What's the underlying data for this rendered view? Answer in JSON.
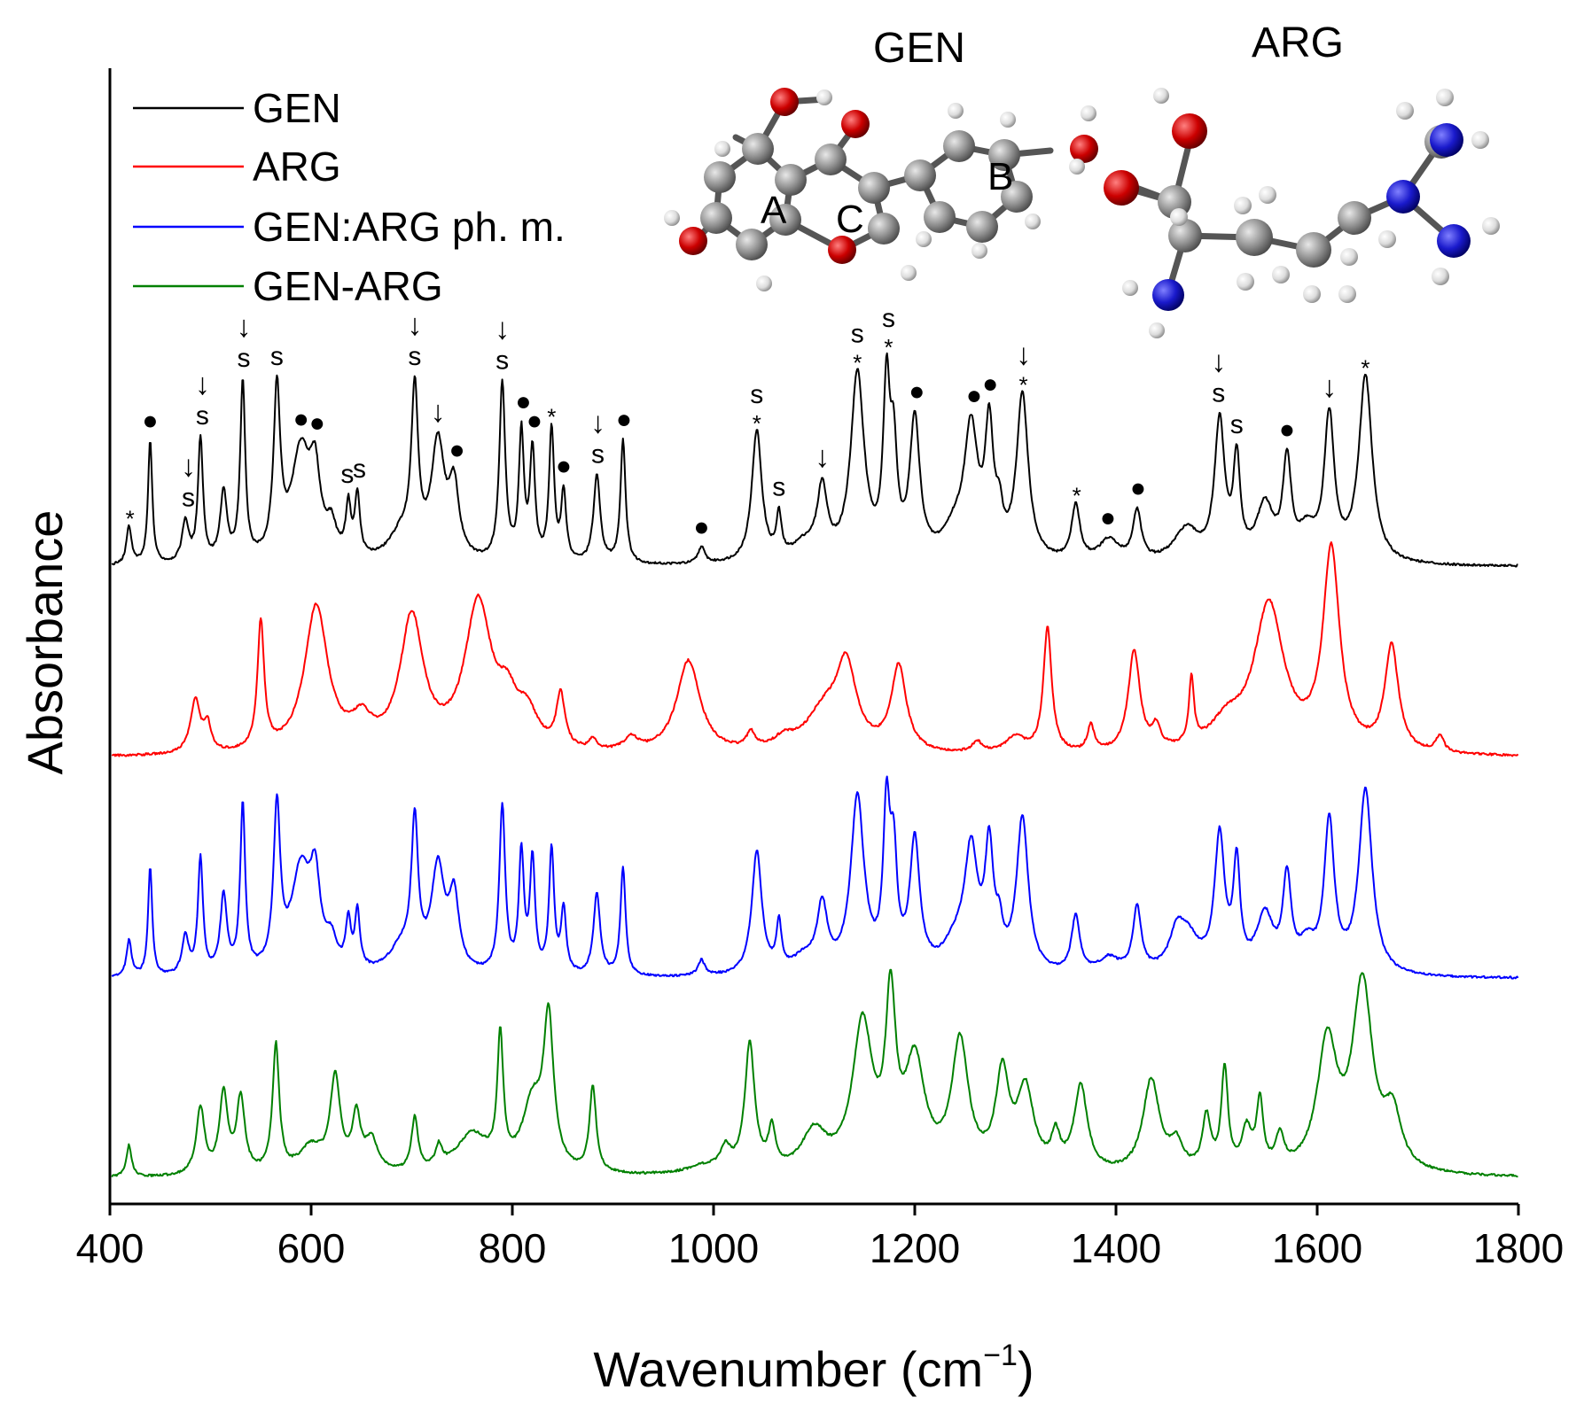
{
  "chart_data": {
    "type": "line",
    "title": "",
    "xlabel": "Wavenumber (cm",
    "xlabel_sup": "−1",
    "xlabel_close": ")",
    "ylabel": "Absorbance",
    "xlim": [
      400,
      1800
    ],
    "x_ticks": [
      "400",
      "600",
      "800",
      "1000",
      "1200",
      "1400",
      "1600",
      "1800"
    ],
    "y_ticks_shown": false,
    "legend_position": "top-left",
    "offsets": [
      0.0,
      -0.95,
      -2.1,
      -3.15
    ],
    "series": [
      {
        "name": "GEN",
        "color": "#000000",
        "baseline": 0.0,
        "peaks": [
          [
            419,
            0.14,
            3
          ],
          [
            440,
            0.45,
            2.5
          ],
          [
            475,
            0.15,
            4
          ],
          [
            490,
            0.45,
            3
          ],
          [
            513,
            0.25,
            4
          ],
          [
            532,
            0.65,
            3
          ],
          [
            566,
            0.6,
            4
          ],
          [
            590,
            0.4,
            12
          ],
          [
            604,
            0.25,
            6
          ],
          [
            620,
            0.1,
            6
          ],
          [
            637,
            0.18,
            3
          ],
          [
            646,
            0.22,
            3
          ],
          [
            703,
            0.58,
            4
          ],
          [
            690,
            0.1,
            15
          ],
          [
            726,
            0.42,
            8
          ],
          [
            742,
            0.25,
            6
          ],
          [
            790,
            0.65,
            3.5
          ],
          [
            809,
            0.46,
            3
          ],
          [
            820,
            0.4,
            3
          ],
          [
            839,
            0.48,
            3
          ],
          [
            851,
            0.25,
            3
          ],
          [
            884,
            0.32,
            4
          ],
          [
            910,
            0.45,
            3
          ],
          [
            988,
            0.06,
            4
          ],
          [
            1043,
            0.48,
            6
          ],
          [
            1065,
            0.15,
            3
          ],
          [
            1108,
            0.25,
            6
          ],
          [
            1090,
            0.06,
            15
          ],
          [
            1143,
            0.68,
            8
          ],
          [
            1172,
            0.6,
            4
          ],
          [
            1179,
            0.35,
            4
          ],
          [
            1200,
            0.5,
            6
          ],
          [
            1240,
            0.1,
            15
          ],
          [
            1256,
            0.45,
            8
          ],
          [
            1274,
            0.45,
            5
          ],
          [
            1284,
            0.12,
            4
          ],
          [
            1307,
            0.6,
            7
          ],
          [
            1360,
            0.2,
            5
          ],
          [
            1393,
            0.08,
            12
          ],
          [
            1421,
            0.18,
            5
          ],
          [
            1470,
            0.12,
            15
          ],
          [
            1503,
            0.5,
            6
          ],
          [
            1520,
            0.35,
            4
          ],
          [
            1548,
            0.2,
            10
          ],
          [
            1570,
            0.35,
            5
          ],
          [
            1612,
            0.52,
            6
          ],
          [
            1648,
            0.68,
            8
          ],
          [
            1590,
            0.1,
            10
          ]
        ]
      },
      {
        "name": "ARG",
        "color": "#ff0000",
        "baseline": 0.0,
        "peaks": [
          [
            485,
            0.2,
            6
          ],
          [
            497,
            0.1,
            4
          ],
          [
            550,
            0.48,
            4
          ],
          [
            605,
            0.55,
            14
          ],
          [
            650,
            0.1,
            12
          ],
          [
            700,
            0.5,
            14
          ],
          [
            766,
            0.55,
            16
          ],
          [
            795,
            0.15,
            12
          ],
          [
            815,
            0.12,
            12
          ],
          [
            848,
            0.2,
            5
          ],
          [
            880,
            0.04,
            4
          ],
          [
            918,
            0.05,
            8
          ],
          [
            975,
            0.35,
            14
          ],
          [
            1037,
            0.06,
            5
          ],
          [
            1070,
            0.04,
            12
          ],
          [
            1110,
            0.15,
            22
          ],
          [
            1132,
            0.3,
            12
          ],
          [
            1184,
            0.32,
            9
          ],
          [
            1262,
            0.04,
            6
          ],
          [
            1300,
            0.06,
            12
          ],
          [
            1332,
            0.47,
            5
          ],
          [
            1375,
            0.1,
            4
          ],
          [
            1418,
            0.38,
            7
          ],
          [
            1440,
            0.08,
            5
          ],
          [
            1475,
            0.25,
            3
          ],
          [
            1510,
            0.1,
            20
          ],
          [
            1552,
            0.55,
            18
          ],
          [
            1614,
            0.75,
            10
          ],
          [
            1674,
            0.4,
            8
          ],
          [
            1722,
            0.06,
            5
          ]
        ]
      },
      {
        "name": "GEN:ARG ph. m.",
        "color": "#0000ff",
        "baseline": 0.0,
        "peaks": [
          [
            419,
            0.14,
            3
          ],
          [
            440,
            0.42,
            2.5
          ],
          [
            475,
            0.15,
            4
          ],
          [
            490,
            0.45,
            3
          ],
          [
            513,
            0.3,
            4
          ],
          [
            532,
            0.65,
            3
          ],
          [
            566,
            0.62,
            4
          ],
          [
            590,
            0.4,
            12
          ],
          [
            604,
            0.3,
            6
          ],
          [
            620,
            0.1,
            6
          ],
          [
            637,
            0.18,
            3
          ],
          [
            646,
            0.22,
            3
          ],
          [
            703,
            0.55,
            4
          ],
          [
            690,
            0.1,
            15
          ],
          [
            726,
            0.4,
            8
          ],
          [
            742,
            0.28,
            6
          ],
          [
            790,
            0.65,
            3.5
          ],
          [
            809,
            0.46,
            3
          ],
          [
            820,
            0.44,
            3
          ],
          [
            839,
            0.48,
            3
          ],
          [
            851,
            0.25,
            3
          ],
          [
            884,
            0.32,
            4
          ],
          [
            910,
            0.42,
            3
          ],
          [
            988,
            0.06,
            4
          ],
          [
            1043,
            0.48,
            6
          ],
          [
            1065,
            0.18,
            3
          ],
          [
            1108,
            0.25,
            6
          ],
          [
            1090,
            0.06,
            15
          ],
          [
            1143,
            0.68,
            8
          ],
          [
            1172,
            0.6,
            4
          ],
          [
            1179,
            0.4,
            4
          ],
          [
            1200,
            0.5,
            6
          ],
          [
            1240,
            0.1,
            15
          ],
          [
            1256,
            0.45,
            8
          ],
          [
            1274,
            0.45,
            5
          ],
          [
            1284,
            0.12,
            4
          ],
          [
            1307,
            0.6,
            7
          ],
          [
            1360,
            0.22,
            5
          ],
          [
            1393,
            0.06,
            12
          ],
          [
            1421,
            0.25,
            5
          ],
          [
            1470,
            0.15,
            15
          ],
          [
            1503,
            0.52,
            6
          ],
          [
            1520,
            0.4,
            4
          ],
          [
            1548,
            0.22,
            10
          ],
          [
            1570,
            0.35,
            5
          ],
          [
            1612,
            0.58,
            6
          ],
          [
            1648,
            0.72,
            8
          ],
          [
            1590,
            0.1,
            10
          ],
          [
            1460,
            0.1,
            8
          ]
        ]
      },
      {
        "name": "GEN-ARG",
        "color": "#008000",
        "baseline": 0.0,
        "peaks": [
          [
            419,
            0.12,
            3
          ],
          [
            490,
            0.25,
            5
          ],
          [
            513,
            0.3,
            5
          ],
          [
            530,
            0.28,
            5
          ],
          [
            565,
            0.48,
            4
          ],
          [
            600,
            0.1,
            15
          ],
          [
            624,
            0.35,
            6
          ],
          [
            645,
            0.2,
            5
          ],
          [
            660,
            0.12,
            8
          ],
          [
            703,
            0.2,
            4
          ],
          [
            727,
            0.08,
            4
          ],
          [
            760,
            0.15,
            20
          ],
          [
            788,
            0.48,
            3.5
          ],
          [
            820,
            0.25,
            12
          ],
          [
            836,
            0.55,
            6
          ],
          [
            880,
            0.32,
            4
          ],
          [
            990,
            0.03,
            20
          ],
          [
            1012,
            0.08,
            6
          ],
          [
            1036,
            0.48,
            6
          ],
          [
            1058,
            0.15,
            4
          ],
          [
            1100,
            0.15,
            15
          ],
          [
            1148,
            0.55,
            12
          ],
          [
            1176,
            0.6,
            6
          ],
          [
            1200,
            0.4,
            12
          ],
          [
            1245,
            0.48,
            10
          ],
          [
            1287,
            0.35,
            8
          ],
          [
            1310,
            0.3,
            10
          ],
          [
            1340,
            0.12,
            5
          ],
          [
            1365,
            0.32,
            8
          ],
          [
            1435,
            0.35,
            10
          ],
          [
            1460,
            0.1,
            8
          ],
          [
            1490,
            0.2,
            5
          ],
          [
            1508,
            0.38,
            4
          ],
          [
            1530,
            0.15,
            6
          ],
          [
            1543,
            0.25,
            4
          ],
          [
            1563,
            0.12,
            5
          ],
          [
            1610,
            0.48,
            12
          ],
          [
            1645,
            0.7,
            12
          ],
          [
            1675,
            0.2,
            10
          ]
        ]
      }
    ],
    "annotations": [
      {
        "x": 420,
        "series": "GEN",
        "label": "*"
      },
      {
        "x": 440,
        "series": "GEN",
        "label": "●"
      },
      {
        "x": 478,
        "series": "GEN",
        "label": "↓ s"
      },
      {
        "x": 492,
        "series": "GEN",
        "label": "↓ s"
      },
      {
        "x": 533,
        "series": "GEN",
        "label": "↓ s"
      },
      {
        "x": 566,
        "series": "GEN",
        "label": "s"
      },
      {
        "x": 590,
        "series": "GEN",
        "label": "●"
      },
      {
        "x": 606,
        "series": "GEN",
        "label": "●"
      },
      {
        "x": 636,
        "series": "GEN",
        "label": "s"
      },
      {
        "x": 648,
        "series": "GEN",
        "label": "s"
      },
      {
        "x": 703,
        "series": "GEN",
        "label": "↓ s"
      },
      {
        "x": 726,
        "series": "GEN",
        "label": "↓"
      },
      {
        "x": 745,
        "series": "GEN",
        "label": "●"
      },
      {
        "x": 790,
        "series": "GEN",
        "label": "↓ s"
      },
      {
        "x": 811,
        "series": "GEN",
        "label": "●"
      },
      {
        "x": 822,
        "series": "GEN",
        "label": "●"
      },
      {
        "x": 839,
        "series": "GEN",
        "label": "*"
      },
      {
        "x": 851,
        "series": "GEN",
        "label": "●"
      },
      {
        "x": 885,
        "series": "GEN",
        "label": "↓ s"
      },
      {
        "x": 911,
        "series": "GEN",
        "label": "●"
      },
      {
        "x": 988,
        "series": "GEN",
        "label": "●"
      },
      {
        "x": 1043,
        "series": "GEN",
        "label": "s *"
      },
      {
        "x": 1065,
        "series": "GEN",
        "label": "s"
      },
      {
        "x": 1108,
        "series": "GEN",
        "label": "↓"
      },
      {
        "x": 1143,
        "series": "GEN",
        "label": "s *"
      },
      {
        "x": 1174,
        "series": "GEN",
        "label": "s *"
      },
      {
        "x": 1202,
        "series": "GEN",
        "label": "●"
      },
      {
        "x": 1259,
        "series": "GEN",
        "label": "●"
      },
      {
        "x": 1275,
        "series": "GEN",
        "label": "●"
      },
      {
        "x": 1308,
        "series": "GEN",
        "label": "↓ *"
      },
      {
        "x": 1361,
        "series": "GEN",
        "label": "*"
      },
      {
        "x": 1392,
        "series": "GEN",
        "label": "●"
      },
      {
        "x": 1422,
        "series": "GEN",
        "label": "●"
      },
      {
        "x": 1502,
        "series": "GEN",
        "label": "↓ s"
      },
      {
        "x": 1520,
        "series": "GEN",
        "label": "s"
      },
      {
        "x": 1570,
        "series": "GEN",
        "label": "●"
      },
      {
        "x": 1612,
        "series": "GEN",
        "label": "↓"
      },
      {
        "x": 1648,
        "series": "GEN",
        "label": "*"
      }
    ]
  },
  "molecules": {
    "gen_title": "GEN",
    "arg_title": "ARG",
    "ring_labels": [
      "A",
      "C",
      "B"
    ]
  },
  "colors": {
    "oxygen": "#cc0000",
    "nitrogen": "#1a1acc",
    "carbon": "#8c8c8c",
    "hydrogen": "#e6e6e6"
  }
}
